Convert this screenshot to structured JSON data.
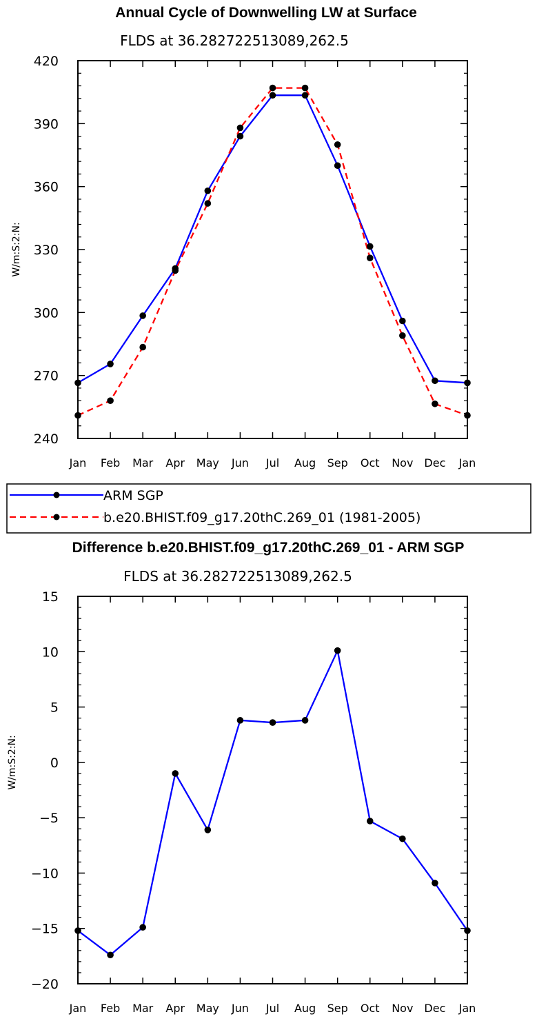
{
  "chart_data": [
    {
      "type": "line",
      "title": "Annual Cycle of Downwelling LW at Surface",
      "subtitle": "FLDS at 36.282722513089,262.5",
      "ylabel": "W/m:S:2:N:",
      "xlabel": "",
      "categories": [
        "Jan",
        "Feb",
        "Mar",
        "Apr",
        "May",
        "Jun",
        "Jul",
        "Aug",
        "Sep",
        "Oct",
        "Nov",
        "Dec",
        "Jan"
      ],
      "ylim": [
        240,
        420
      ],
      "yticks": [
        240,
        270,
        300,
        330,
        360,
        390,
        420
      ],
      "grid": false,
      "legend_position": "bottom",
      "series": [
        {
          "name": "ARM SGP",
          "color": "#0000ff",
          "dash": "solid",
          "values": [
            266.5,
            275.5,
            298.5,
            321,
            358,
            384,
            403.5,
            403.5,
            370,
            331.5,
            296,
            267.5,
            266.5
          ]
        },
        {
          "name": "b.e20.BHIST.f09_g17.20thC.269_01 (1981-2005)",
          "color": "#ff0000",
          "dash": "dashed",
          "values": [
            251,
            258,
            283.5,
            320,
            352,
            388,
            407,
            407,
            380,
            326,
            289,
            256.5,
            251
          ]
        }
      ]
    },
    {
      "type": "line",
      "title": "Difference b.e20.BHIST.f09_g17.20thC.269_01 - ARM SGP",
      "subtitle": "FLDS at 36.282722513089,262.5",
      "ylabel": "W/m:S:2:N:",
      "xlabel": "",
      "categories": [
        "Jan",
        "Feb",
        "Mar",
        "Apr",
        "May",
        "Jun",
        "Jul",
        "Aug",
        "Sep",
        "Oct",
        "Nov",
        "Dec",
        "Jan"
      ],
      "ylim": [
        -20,
        15
      ],
      "yticks": [
        -20,
        -15,
        -10,
        -5,
        0,
        5,
        10,
        15
      ],
      "grid": false,
      "series": [
        {
          "color": "#0000ff",
          "dash": "solid",
          "values": [
            -15.2,
            -17.4,
            -14.9,
            -1.0,
            -6.1,
            3.8,
            3.6,
            3.8,
            10.1,
            -5.3,
            -6.9,
            -10.9,
            -15.2
          ]
        }
      ]
    }
  ]
}
